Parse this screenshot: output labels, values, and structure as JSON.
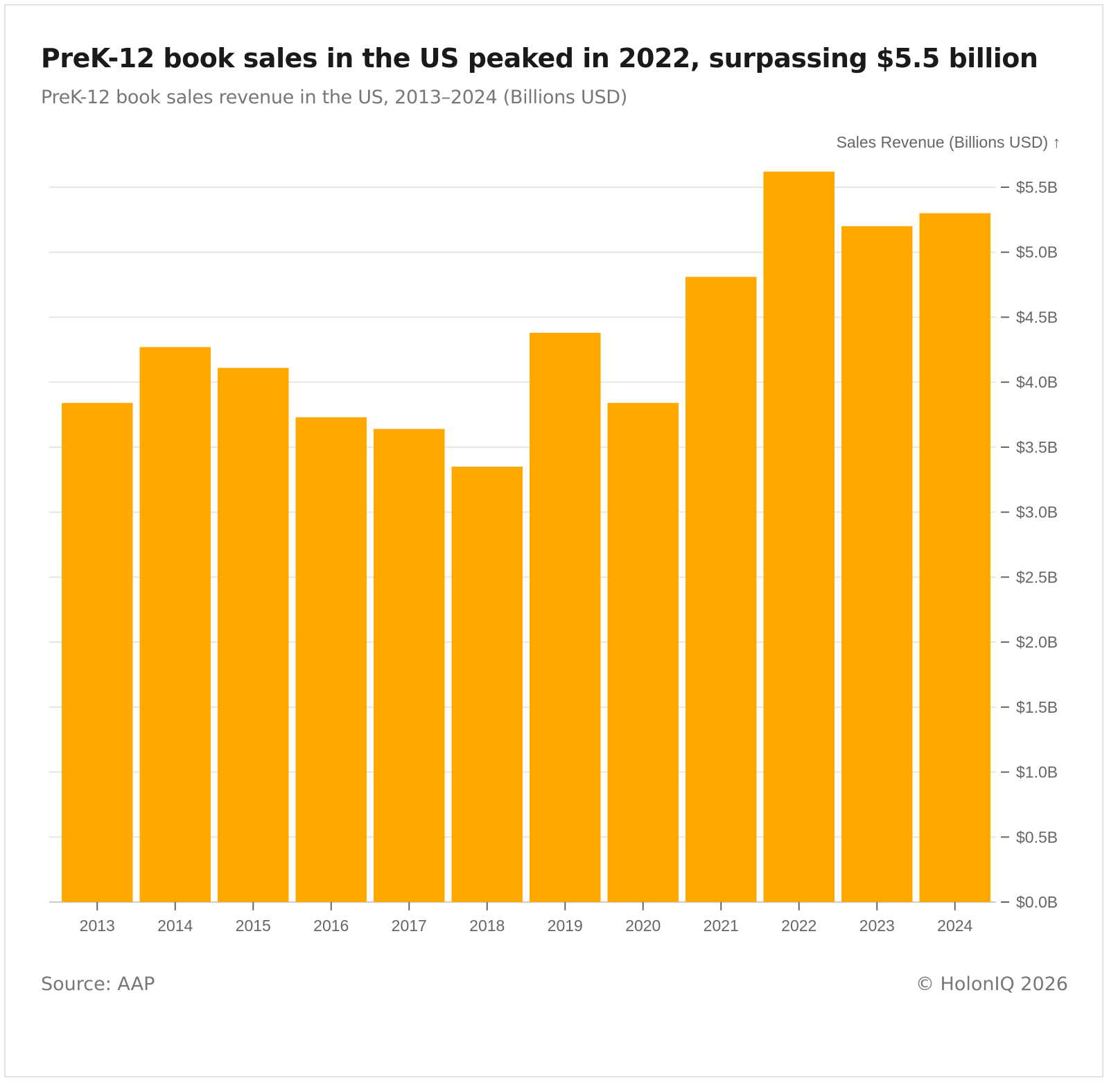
{
  "title": "PreK-12 book sales in the US peaked in 2022, surpassing $5.5 billion",
  "subtitle": "PreK-12 book sales revenue in the US, 2013–2024 (Billions USD)",
  "source": "Source: AAP",
  "copyright": "© HolonIQ 2026",
  "chart_data": {
    "type": "bar",
    "title": "PreK-12 book sales in the US peaked in 2022, surpassing $5.5 billion",
    "subtitle": "PreK-12 book sales revenue in the US, 2013–2024 (Billions USD)",
    "ylabel": "Sales Revenue (Billions USD) ↑",
    "xlabel": "",
    "categories": [
      "2013",
      "2014",
      "2015",
      "2016",
      "2017",
      "2018",
      "2019",
      "2020",
      "2021",
      "2022",
      "2023",
      "2024"
    ],
    "values": [
      3.84,
      4.27,
      4.11,
      3.73,
      3.64,
      3.35,
      4.38,
      3.84,
      4.81,
      5.62,
      5.2,
      5.3
    ],
    "ylim": [
      0,
      5.5
    ],
    "yticks": [
      "$0.0B",
      "$0.5B",
      "$1.0B",
      "$1.5B",
      "$2.0B",
      "$2.5B",
      "$3.0B",
      "$3.5B",
      "$4.0B",
      "$4.5B",
      "$5.0B",
      "$5.5B"
    ],
    "ytick_values": [
      0,
      0.5,
      1,
      1.5,
      2,
      2.5,
      3,
      3.5,
      4,
      4.5,
      5,
      5.5
    ],
    "y_axis_side": "right",
    "grid": true,
    "bar_color": "#FFA800",
    "grid_color": "#e6e6e6"
  }
}
